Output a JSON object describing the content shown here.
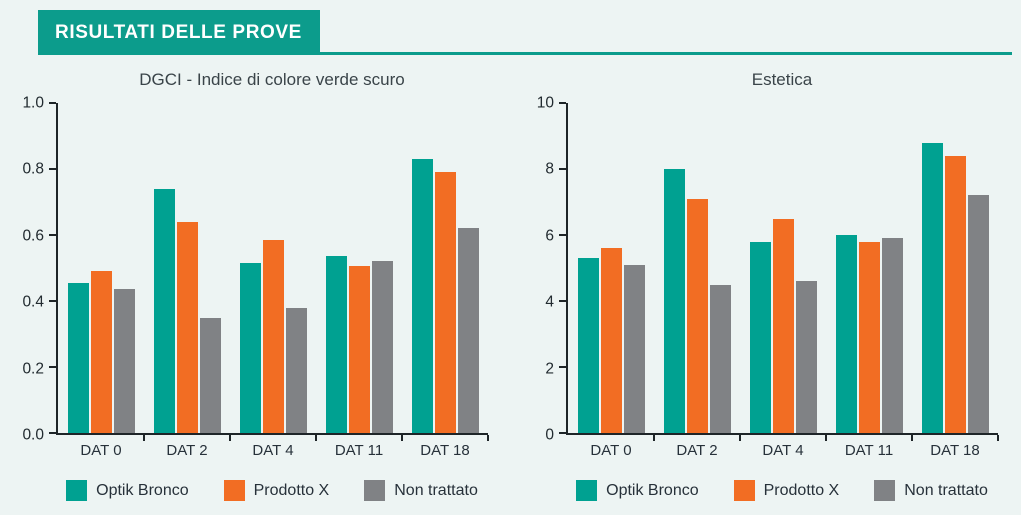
{
  "header": {
    "title": "RISULTATI DELLE PROVE"
  },
  "colors": {
    "teal": "#00A191",
    "orange": "#F26D23",
    "gray": "#808285",
    "header_box": "#0C9C8C",
    "background": "#EDF4F3",
    "axis": "#1E2528"
  },
  "chart_data": [
    {
      "type": "bar",
      "title": "DGCI - Indice di colore verde scuro",
      "categories": [
        "DAT 0",
        "DAT 2",
        "DAT 4",
        "DAT 11",
        "DAT 18"
      ],
      "series": [
        {
          "name": "Optik Bronco",
          "color": "#00A191",
          "values": [
            0.455,
            0.74,
            0.515,
            0.535,
            0.83
          ]
        },
        {
          "name": "Prodotto X",
          "color": "#F26D23",
          "values": [
            0.49,
            0.64,
            0.585,
            0.505,
            0.79
          ]
        },
        {
          "name": "Non trattato",
          "color": "#808285",
          "values": [
            0.435,
            0.35,
            0.38,
            0.52,
            0.62
          ]
        }
      ],
      "ylim": [
        0,
        1.0
      ],
      "ytick_labels_top_to_bottom": [
        "1.0",
        "0.8",
        "0.6",
        "0.4",
        "0.2",
        "0.0"
      ],
      "grid": false,
      "legend_position": "bottom",
      "legend": [
        "Optik Bronco",
        "Prodotto X",
        "Non trattato"
      ]
    },
    {
      "type": "bar",
      "title": "Estetica",
      "categories": [
        "DAT 0",
        "DAT 2",
        "DAT 4",
        "DAT 11",
        "DAT 18"
      ],
      "series": [
        {
          "name": "Optik Bronco",
          "color": "#00A191",
          "values": [
            5.3,
            8.0,
            5.8,
            6.0,
            8.8
          ]
        },
        {
          "name": "Prodotto X",
          "color": "#F26D23",
          "values": [
            5.6,
            7.1,
            6.5,
            5.8,
            8.4
          ]
        },
        {
          "name": "Non trattato",
          "color": "#808285",
          "values": [
            5.1,
            4.5,
            4.6,
            5.9,
            7.2
          ]
        }
      ],
      "ylim": [
        0,
        10
      ],
      "ytick_labels_top_to_bottom": [
        "10",
        "8",
        "6",
        "4",
        "2",
        "0"
      ],
      "grid": false,
      "legend_position": "bottom",
      "legend": [
        "Optik Bronco",
        "Prodotto X",
        "Non trattato"
      ]
    }
  ]
}
